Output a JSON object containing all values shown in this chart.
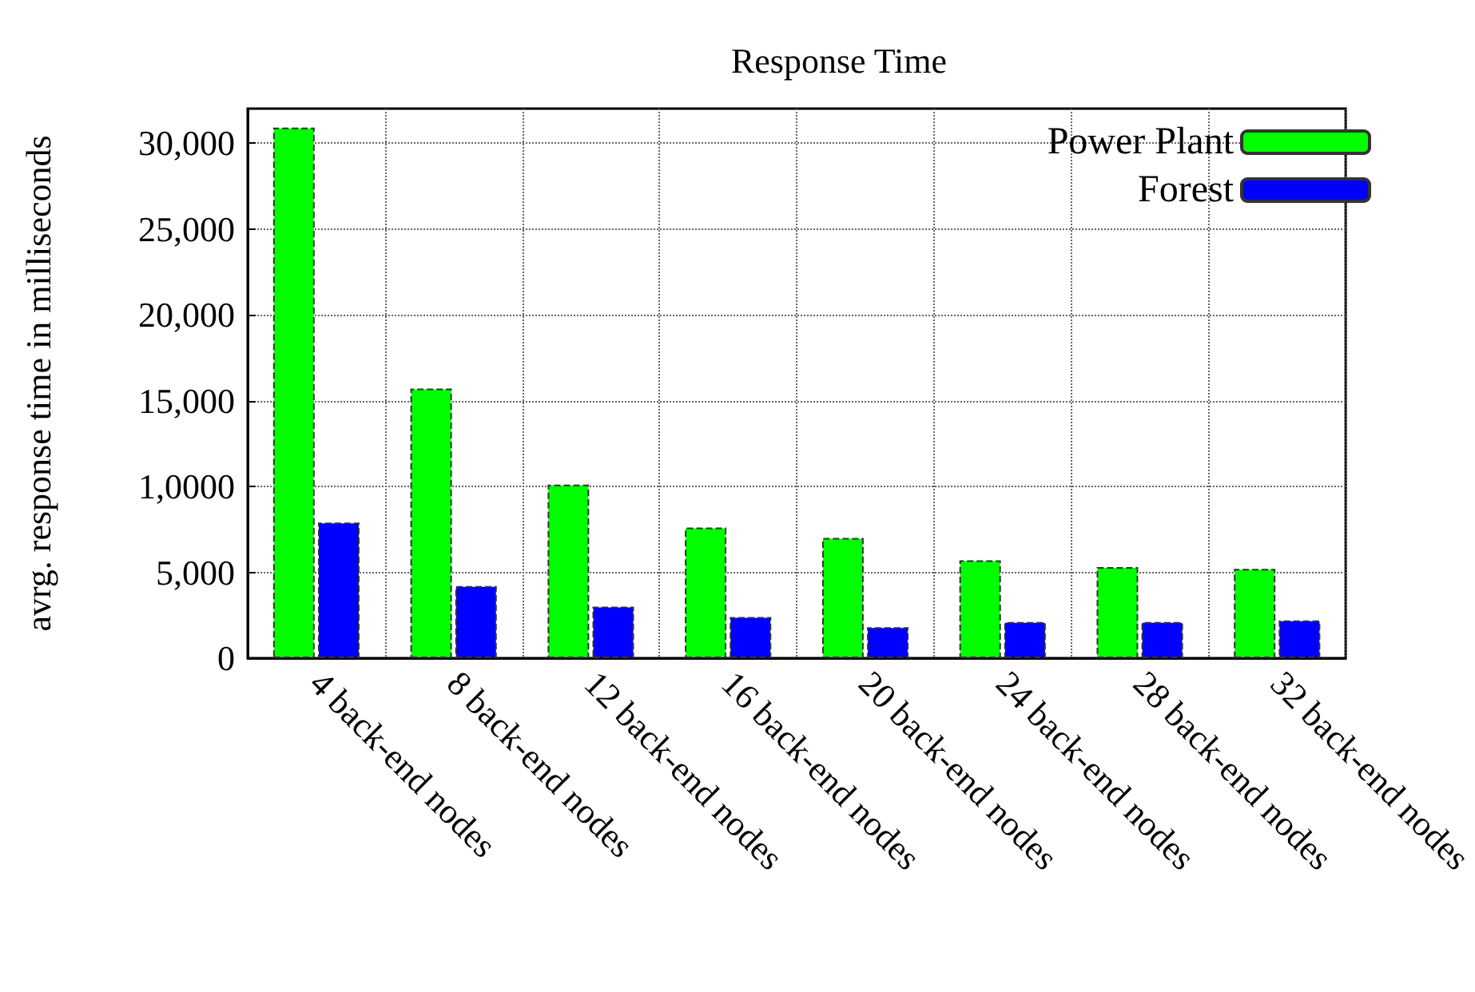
{
  "chart_data": {
    "type": "bar",
    "title": "Response Time",
    "ylabel": "avrg. response time in milliseconds",
    "categories": [
      "4 back-end nodes",
      "8 back-end nodes",
      "12 back-end nodes",
      "16 back-end nodes",
      "20 back-end nodes",
      "24 back-end nodes",
      "28 back-end nodes",
      "32 back-end nodes"
    ],
    "series": [
      {
        "name": "Power Plant",
        "color": "#00ff00",
        "values": [
          30900,
          15700,
          10100,
          7600,
          7000,
          5700,
          5300,
          5200
        ]
      },
      {
        "name": "Forest",
        "color": "#0000ff",
        "values": [
          7900,
          4200,
          3000,
          2400,
          1800,
          2100,
          2100,
          2200
        ]
      }
    ],
    "ylim": [
      0,
      32000
    ],
    "yticks": [
      0,
      {
        "value": 5000,
        "label": "5,000"
      },
      {
        "value": 10000,
        "label": "1,0000"
      },
      {
        "value": 15000,
        "label": "15,000"
      },
      {
        "value": 20000,
        "label": "20,000"
      },
      {
        "value": 25000,
        "label": "25,000"
      },
      {
        "value": 30000,
        "label": "30,000"
      }
    ],
    "grid": true,
    "legend": "top right"
  }
}
